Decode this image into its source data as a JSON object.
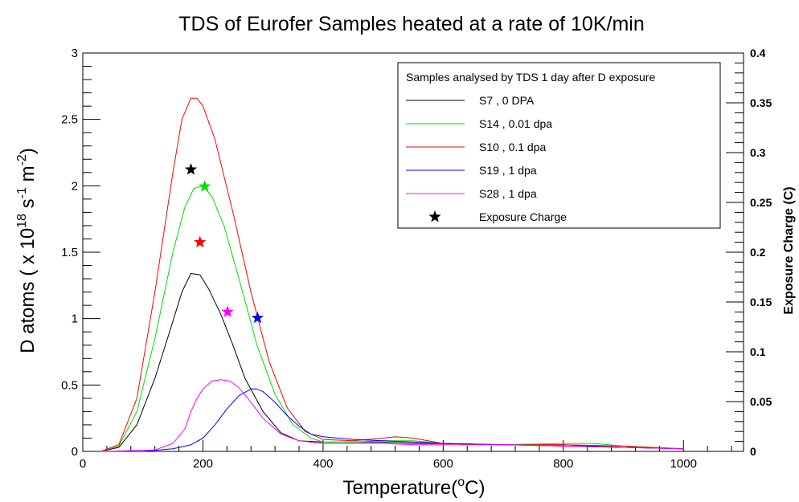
{
  "chart_data": {
    "type": "line",
    "title": "TDS of Eurofer Samples heated at a rate of 10K/min",
    "xlabel": "Temperature(°C)",
    "xlabel_parts": {
      "pre": "Temperature(",
      "sup": "o",
      "post": "C)"
    },
    "ylabel": "D atoms ( x 10^18 s^-1 m^-2)",
    "ylabel_parts": {
      "p1": "D atoms ( x 10",
      "s1": "18",
      "p2": " s",
      "s2": "-1",
      "p3": " m",
      "s3": "-2",
      "p4": ")"
    },
    "y2label": "Exposure Charge (C)",
    "xlim": [
      0,
      1100
    ],
    "ylim": [
      0,
      3
    ],
    "y2lim": [
      0,
      0.4
    ],
    "xticks": [
      "0",
      "200",
      "400",
      "600",
      "800",
      "1000"
    ],
    "yticks": [
      "0",
      "0.5",
      "1",
      "1.5",
      "2",
      "2.5",
      "3"
    ],
    "y2ticks": [
      "0",
      "0.05",
      "0.1",
      "0.15",
      "0.2",
      "0.25",
      "0.3",
      "0.35",
      "0.4"
    ],
    "legend": {
      "title": "Samples analysed by TDS 1 day after D exposure",
      "position": "top-right",
      "marker_label": "Exposure Charge"
    },
    "series": [
      {
        "name": "S7 , 0 DPA",
        "color": "#000000",
        "x": [
          30,
          60,
          90,
          120,
          150,
          165,
          180,
          195,
          210,
          230,
          250,
          270,
          300,
          330,
          360,
          400,
          450,
          500,
          550,
          600,
          700,
          800,
          900,
          1000
        ],
        "y": [
          0,
          0.03,
          0.2,
          0.55,
          0.98,
          1.2,
          1.34,
          1.33,
          1.22,
          1.03,
          0.8,
          0.55,
          0.3,
          0.14,
          0.08,
          0.07,
          0.07,
          0.07,
          0.06,
          0.06,
          0.05,
          0.05,
          0.03,
          0.02
        ]
      },
      {
        "name": "S14 , 0.01 dpa",
        "color": "#00dd00",
        "x": [
          30,
          60,
          90,
          120,
          150,
          170,
          185,
          200,
          215,
          235,
          260,
          290,
          320,
          350,
          380,
          400,
          450,
          500,
          550,
          600,
          700,
          800,
          850,
          900,
          1000
        ],
        "y": [
          0,
          0.04,
          0.3,
          0.85,
          1.5,
          1.84,
          1.98,
          2.0,
          1.92,
          1.7,
          1.3,
          0.8,
          0.43,
          0.2,
          0.1,
          0.07,
          0.07,
          0.08,
          0.08,
          0.06,
          0.05,
          0.06,
          0.06,
          0.04,
          0.02
        ]
      },
      {
        "name": "S10 , 0.1 dpa",
        "color": "#ff0000",
        "x": [
          30,
          60,
          90,
          120,
          150,
          165,
          180,
          190,
          200,
          220,
          250,
          280,
          310,
          340,
          370,
          400,
          450,
          500,
          520,
          550,
          600,
          700,
          800,
          900,
          1000
        ],
        "y": [
          0,
          0.05,
          0.4,
          1.2,
          2.1,
          2.5,
          2.66,
          2.66,
          2.6,
          2.35,
          1.8,
          1.2,
          0.68,
          0.33,
          0.15,
          0.09,
          0.08,
          0.1,
          0.11,
          0.1,
          0.06,
          0.05,
          0.05,
          0.04,
          0.02
        ]
      },
      {
        "name": "S19 , 1 dpa",
        "color": "#0000ff",
        "x": [
          30,
          100,
          150,
          180,
          200,
          220,
          240,
          260,
          280,
          290,
          300,
          320,
          340,
          360,
          380,
          400,
          450,
          500,
          550,
          600,
          700,
          800,
          900,
          1000
        ],
        "y": [
          0,
          0,
          0.02,
          0.05,
          0.1,
          0.2,
          0.32,
          0.42,
          0.47,
          0.47,
          0.45,
          0.37,
          0.27,
          0.19,
          0.13,
          0.11,
          0.09,
          0.08,
          0.07,
          0.06,
          0.05,
          0.04,
          0.03,
          0.02
        ]
      },
      {
        "name": "S28 , 1 dpa",
        "color": "#ff00ff",
        "x": [
          30,
          120,
          150,
          170,
          180,
          190,
          200,
          215,
          230,
          245,
          260,
          280,
          300,
          330,
          360,
          400,
          450,
          500,
          550,
          600,
          700,
          800,
          900,
          1000
        ],
        "y": [
          0,
          0.01,
          0.06,
          0.17,
          0.3,
          0.4,
          0.47,
          0.53,
          0.54,
          0.53,
          0.48,
          0.37,
          0.25,
          0.13,
          0.08,
          0.06,
          0.06,
          0.06,
          0.05,
          0.05,
          0.05,
          0.04,
          0.03,
          0.02
        ]
      }
    ],
    "exposure_charge": [
      {
        "name": "S7 , 0 DPA",
        "color": "#000000",
        "x": 180,
        "y": 0.283
      },
      {
        "name": "S14 , 0.01 dpa",
        "color": "#00dd00",
        "x": 203,
        "y": 0.266
      },
      {
        "name": "S10 , 0.1 dpa",
        "color": "#ff0000",
        "x": 195,
        "y": 0.21
      },
      {
        "name": "S28 , 1 dpa",
        "color": "#ff00ff",
        "x": 241,
        "y": 0.14
      },
      {
        "name": "S19 , 1 dpa",
        "color": "#0000ff",
        "x": 291,
        "y": 0.134
      }
    ]
  }
}
